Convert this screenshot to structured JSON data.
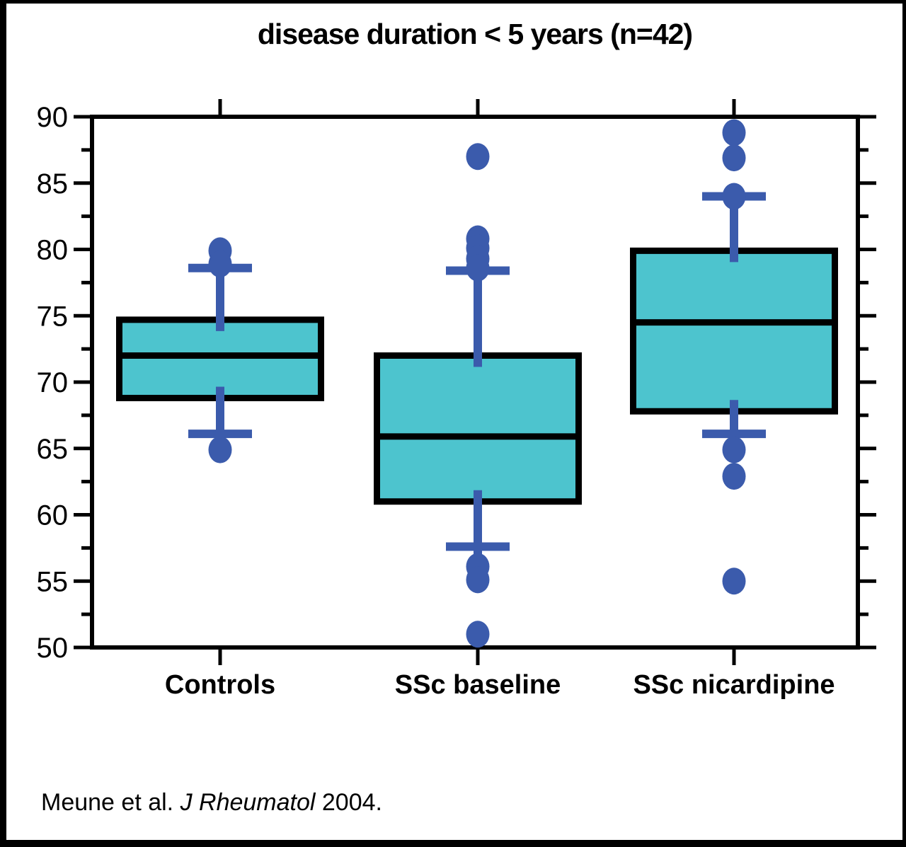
{
  "chart_data": {
    "type": "box",
    "title": "disease duration < 5 years (n=42)",
    "categories": [
      "Controls",
      "SSc baseline",
      "SSc nicardipine"
    ],
    "xlabel": "",
    "ylabel": "",
    "ylim": [
      50,
      90
    ],
    "y_major_ticks": [
      50,
      55,
      60,
      65,
      70,
      75,
      80,
      85,
      90
    ],
    "y_minor_ticks": [
      52.5,
      57.5,
      62.5,
      67.5,
      72.5,
      77.5,
      82.5,
      87.5
    ],
    "grid": false,
    "legend": "none",
    "boxes": [
      {
        "label": "Controls",
        "q1": 68.8,
        "median": 72.0,
        "q3": 74.7,
        "whisker_low": 66.1,
        "whisker_high": 78.6,
        "whisker_line_low_end": 65.2,
        "whisker_line_high_end": 79.3,
        "outliers_high": [
          79.9,
          78.9
        ],
        "outliers_low": [
          64.9
        ]
      },
      {
        "label": "SSc baseline",
        "q1": 61.0,
        "median": 65.9,
        "q3": 72.0,
        "whisker_low": 57.6,
        "whisker_high": 78.4,
        "whisker_line_low_end": 56.5,
        "whisker_line_high_end": 79.0,
        "outliers_high": [
          87.0,
          80.8,
          80.1,
          79.3,
          78.6
        ],
        "outliers_low": [
          56.1,
          55.1,
          51.0
        ]
      },
      {
        "label": "SSc nicardipine",
        "q1": 67.8,
        "median": 74.5,
        "q3": 79.9,
        "whisker_low": 66.1,
        "whisker_high": 84.0,
        "whisker_line_low_end": 64.8,
        "whisker_line_high_end": 84.0,
        "outliers_high": [
          88.8,
          86.9,
          84.0
        ],
        "outliers_low": [
          64.9,
          62.9,
          55.0
        ]
      }
    ],
    "colors": {
      "box_fill": "#4DC4CE",
      "box_border": "#000000",
      "whisker": "#3B5BAC",
      "outlier": "#3B5BAC",
      "axis": "#000000",
      "text": "#000000"
    }
  },
  "footer": {
    "authors": "Meune et al. ",
    "journal": "J Rheumatol",
    "year": " 2004."
  }
}
